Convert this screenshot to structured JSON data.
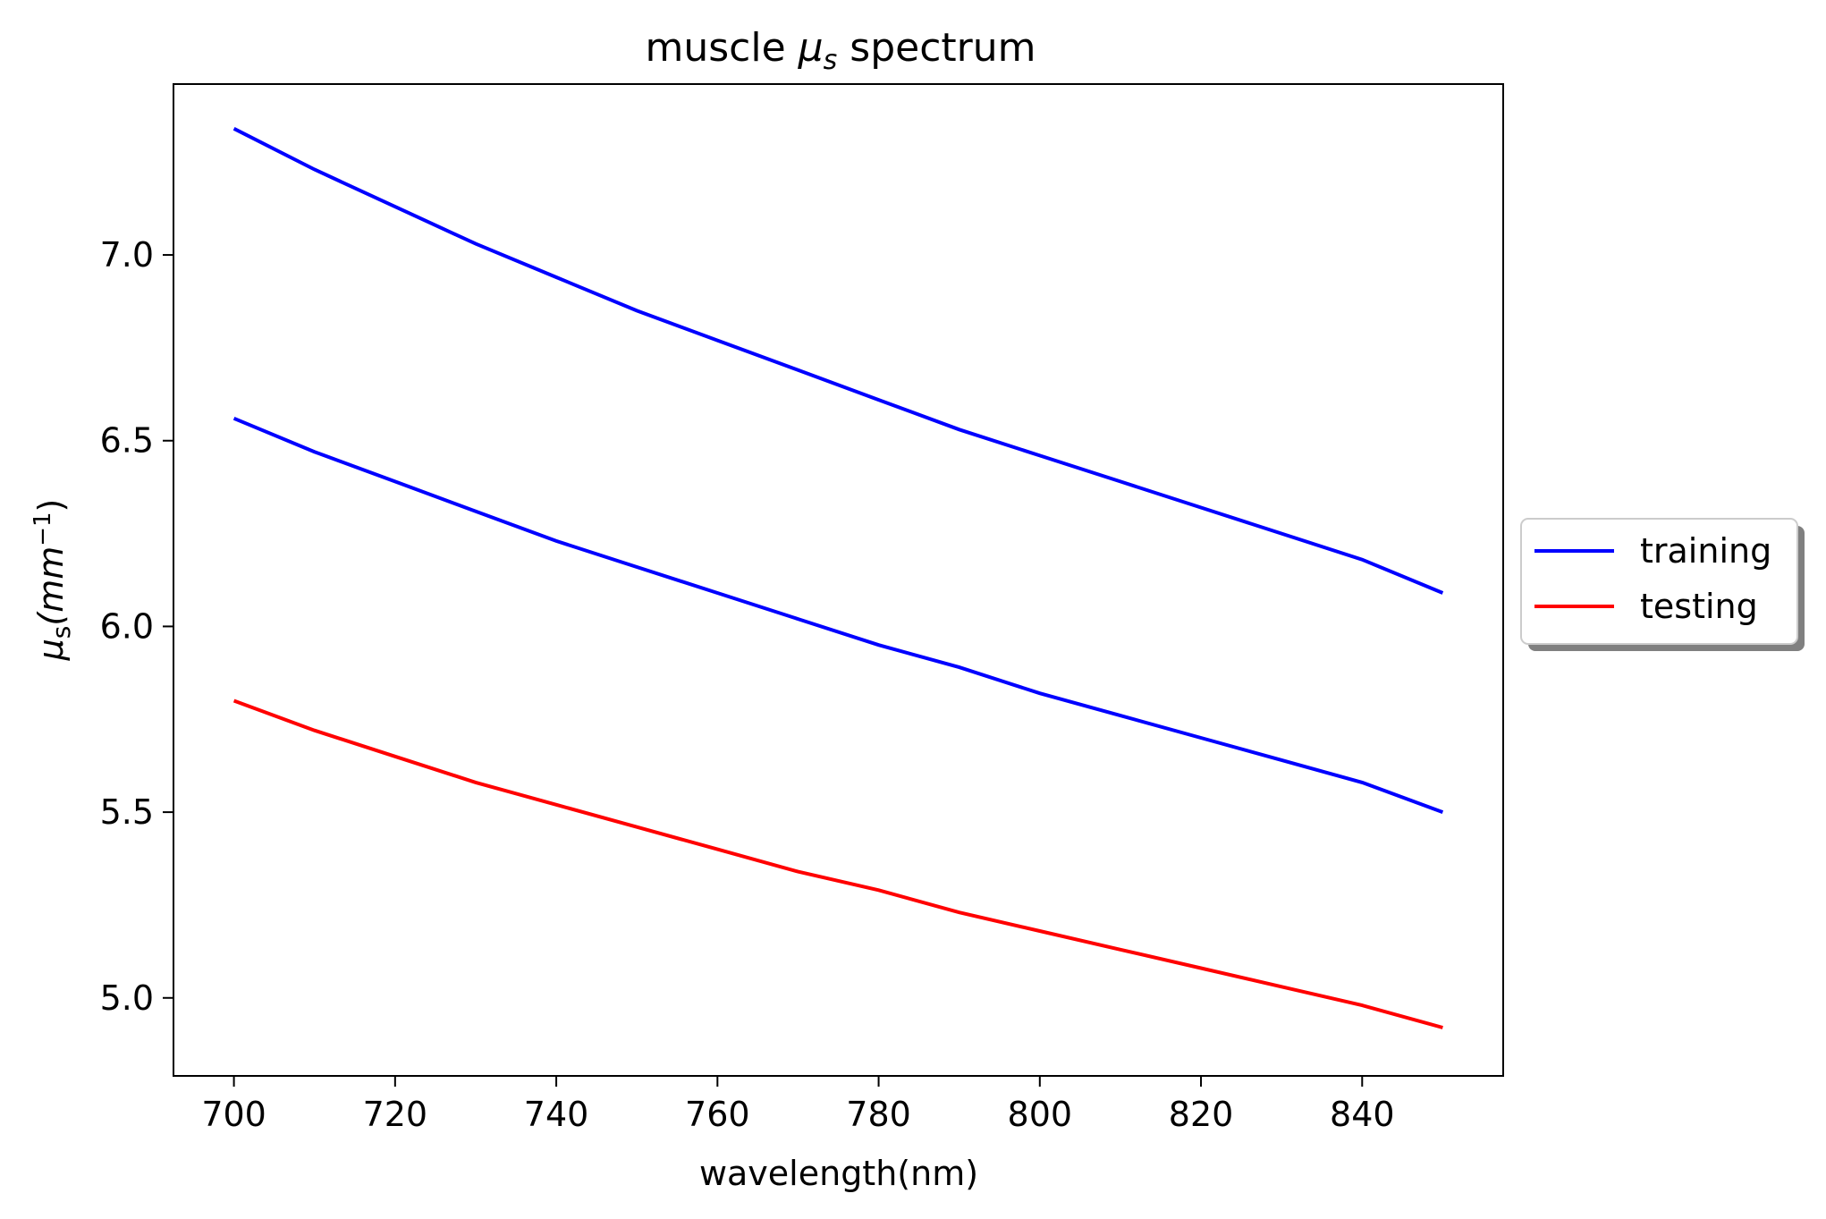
{
  "chart_data": {
    "type": "line",
    "title": "muscle μ spectrum",
    "title_main": "muscle",
    "title_symbol": "μ",
    "title_sub": "s",
    "title_rest": "spectrum",
    "xlabel": "wavelength(nm)",
    "ylabel_symbol": "μ",
    "ylabel_sub": "s",
    "ylabel_unit_open": "(mm",
    "ylabel_unit_exp": "−1",
    "ylabel_unit_close": ")",
    "xlim": [
      692.5,
      857.5
    ],
    "ylim": [
      4.79,
      7.46
    ],
    "x_ticks": [
      700,
      720,
      740,
      760,
      780,
      800,
      820,
      840
    ],
    "x_tick_labels": [
      "700",
      "720",
      "740",
      "760",
      "780",
      "800",
      "820",
      "840"
    ],
    "y_ticks": [
      5.0,
      5.5,
      6.0,
      6.5,
      7.0
    ],
    "y_tick_labels": [
      "5.0",
      "5.5",
      "6.0",
      "6.5",
      "7.0"
    ],
    "grid": false,
    "legend_position": "outside-right",
    "legend": [
      {
        "label": "training",
        "color": "#0000ff"
      },
      {
        "label": "testing",
        "color": "#ff0000"
      }
    ],
    "x": [
      700,
      710,
      720,
      730,
      740,
      750,
      760,
      770,
      780,
      790,
      800,
      810,
      820,
      830,
      840,
      850
    ],
    "series": [
      {
        "group": "training",
        "color": "#0000ff",
        "values": [
          7.34,
          7.23,
          7.13,
          7.03,
          6.94,
          6.85,
          6.77,
          6.69,
          6.61,
          6.53,
          6.46,
          6.39,
          6.32,
          6.25,
          6.18,
          6.09
        ]
      },
      {
        "group": "training",
        "color": "#0000ff",
        "values": [
          6.56,
          6.47,
          6.39,
          6.31,
          6.23,
          6.16,
          6.09,
          6.02,
          5.95,
          5.89,
          5.82,
          5.76,
          5.7,
          5.64,
          5.58,
          5.5
        ]
      },
      {
        "group": "testing",
        "color": "#ff0000",
        "values": [
          5.8,
          5.72,
          5.65,
          5.58,
          5.52,
          5.46,
          5.4,
          5.34,
          5.29,
          5.23,
          5.18,
          5.13,
          5.08,
          5.03,
          4.98,
          4.92
        ]
      }
    ]
  }
}
